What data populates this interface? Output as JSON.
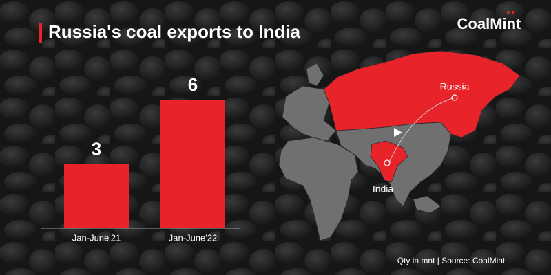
{
  "chart_data": {
    "type": "bar",
    "title": "Russia's coal exports to India",
    "categories": [
      "Jan-June'21",
      "Jan-June'22"
    ],
    "values": [
      3,
      6
    ],
    "color": "#e8232a"
  },
  "logo": "CoalMint",
  "map": {
    "labels": [
      "Russia",
      "India"
    ]
  },
  "footer": "Qty in mnt  |  Source: CoalMint"
}
